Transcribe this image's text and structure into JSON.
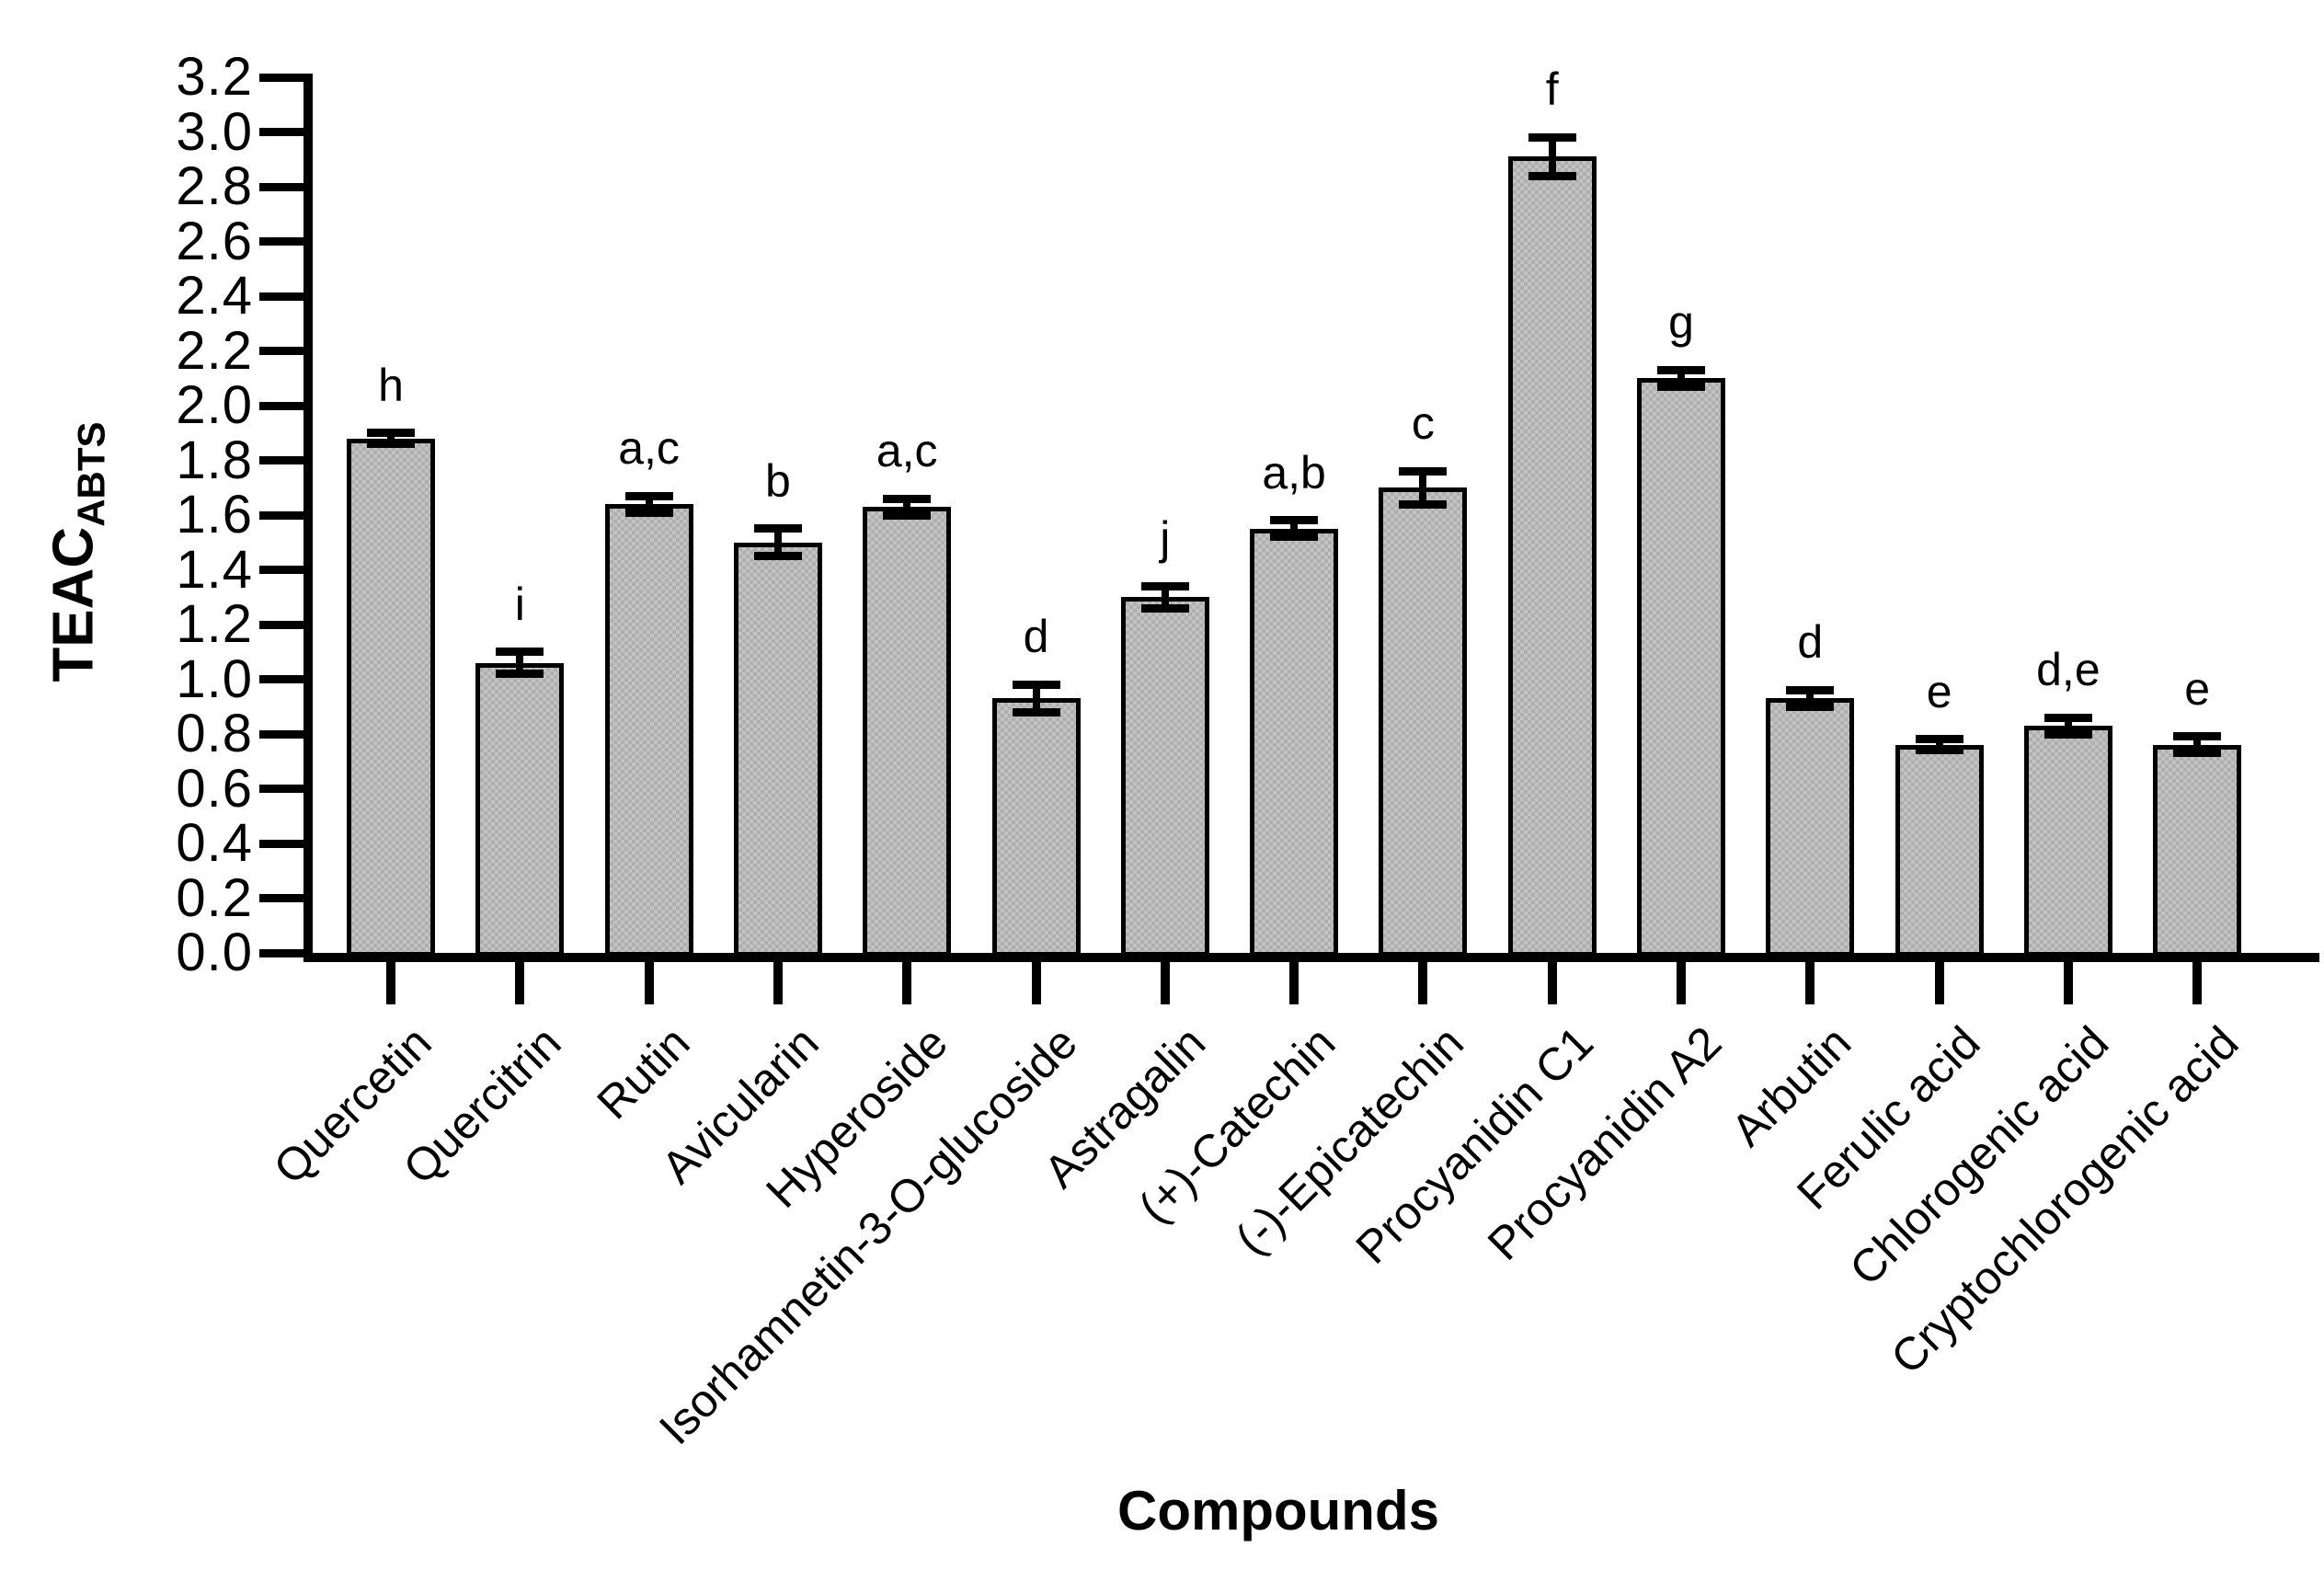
{
  "figure": {
    "background": "#ffffff",
    "bar_fill": "#aeaeae",
    "bar_border": "#000000",
    "axis_color": "#000000"
  },
  "chart_data": {
    "type": "bar",
    "title": "",
    "xlabel": "Compounds",
    "ylabel_main": "TEAC",
    "ylabel_sub": "ABTS",
    "ylim": [
      0.0,
      3.2
    ],
    "ytick_step": 0.2,
    "ytick_labels": [
      "0.0",
      "0.2",
      "0.4",
      "0.6",
      "0.8",
      "1.0",
      "1.2",
      "1.4",
      "1.6",
      "1.8",
      "2.0",
      "2.2",
      "2.4",
      "2.6",
      "2.8",
      "3.0",
      "3.2"
    ],
    "grid": false,
    "legend": "none",
    "categories": [
      "Quercetin",
      "Quercitrin",
      "Rutin",
      "Avicularin",
      "Hyperoside",
      "Isorhamnetin-3-O-glucoside",
      "Astragalin",
      "(+)-Catechin",
      "(-)-Epicatechin",
      "Procyanidin C1",
      "Procyanidin A2",
      "Arbutin",
      "Ferulic acid",
      "Chlorogenic acid",
      "Cryptochlorogenic acid"
    ],
    "series": [
      {
        "name": "TEAC_ABTS",
        "values": [
          1.88,
          1.06,
          1.64,
          1.5,
          1.63,
          0.93,
          1.3,
          1.55,
          1.7,
          2.91,
          2.1,
          0.93,
          0.76,
          0.83,
          0.76
        ]
      }
    ],
    "errors": [
      0.02,
      0.04,
      0.03,
      0.05,
      0.03,
      0.05,
      0.04,
      0.03,
      0.06,
      0.07,
      0.03,
      0.03,
      0.02,
      0.03,
      0.03
    ],
    "sig_letters": [
      "h",
      "i",
      "a,c",
      "b",
      "a,c",
      "d",
      "j",
      "a,b",
      "c",
      "f",
      "g",
      "d",
      "e",
      "d,e",
      "e"
    ]
  }
}
